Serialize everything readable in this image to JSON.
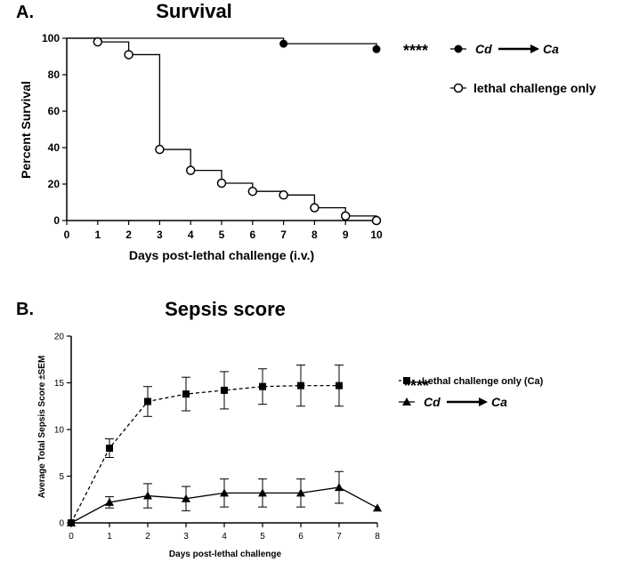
{
  "stats_marker": "****",
  "chart_data": [
    {
      "panel_label": "A.",
      "type": "line",
      "title": "Survival",
      "xlabel": "Days post-lethal challenge (i.v.)",
      "ylabel": "Percent Survival",
      "xlim": [
        0,
        10
      ],
      "ylim": [
        0,
        100
      ],
      "xticks": [
        "0",
        "1",
        "2",
        "3",
        "4",
        "5",
        "6",
        "7",
        "8",
        "9",
        "10"
      ],
      "yticks": [
        "0",
        "20",
        "40",
        "60",
        "80",
        "100"
      ],
      "step": true,
      "grid": false,
      "legend_position": "right",
      "series": [
        {
          "legend_prefix": "Cd",
          "legend_suffix": "Ca",
          "marker": "filled-circle",
          "line": "solid",
          "steps": [
            [
              0,
              100
            ],
            [
              7,
              97
            ],
            [
              10,
              94
            ]
          ],
          "points": [
            [
              7,
              97
            ],
            [
              10,
              94
            ]
          ],
          "significance": "****"
        },
        {
          "name": "lethal challenge only",
          "marker": "open-circle",
          "line": "solid",
          "steps": [
            [
              0,
              100
            ],
            [
              1,
              98
            ],
            [
              2,
              91
            ],
            [
              3,
              39
            ],
            [
              4,
              27.5
            ],
            [
              5,
              20.5
            ],
            [
              6,
              16
            ],
            [
              7,
              14
            ],
            [
              8,
              7
            ],
            [
              9,
              2.5
            ],
            [
              10,
              0
            ]
          ],
          "points": [
            [
              1,
              98
            ],
            [
              2,
              91
            ],
            [
              3,
              39
            ],
            [
              4,
              27.5
            ],
            [
              5,
              20.5
            ],
            [
              6,
              16
            ],
            [
              7,
              14
            ],
            [
              8,
              7
            ],
            [
              9,
              2.5
            ],
            [
              10,
              0
            ]
          ]
        }
      ]
    },
    {
      "panel_label": "B.",
      "type": "line",
      "title": "Sepsis score",
      "xlabel": "Days post-lethal challenge",
      "ylabel": "Average Total Sepsis Score ±SEM",
      "xlim": [
        0,
        8
      ],
      "ylim": [
        0,
        20
      ],
      "xticks": [
        "0",
        "1",
        "2",
        "3",
        "4",
        "5",
        "6",
        "7",
        "8"
      ],
      "yticks": [
        "0",
        "5",
        "10",
        "15",
        "20"
      ],
      "grid": false,
      "legend_position": "right",
      "series": [
        {
          "name": "Lethal challenge only (Ca)",
          "marker": "square",
          "line": "dashed",
          "x": [
            0,
            1,
            2,
            3,
            4,
            5,
            6,
            7
          ],
          "values": [
            0,
            8,
            13,
            13.8,
            14.2,
            14.6,
            14.7,
            14.7
          ],
          "error": [
            0,
            1,
            1.6,
            1.8,
            2,
            1.9,
            2.2,
            2.2
          ],
          "significance": "****"
        },
        {
          "legend_prefix": "Cd",
          "legend_suffix": "Ca",
          "marker": "triangle",
          "line": "solid",
          "x": [
            0,
            1,
            2,
            3,
            4,
            5,
            6,
            7,
            8
          ],
          "values": [
            0,
            2.2,
            2.9,
            2.6,
            3.2,
            3.2,
            3.2,
            3.8,
            1.6
          ],
          "error": [
            0,
            0.6,
            1.3,
            1.3,
            1.5,
            1.5,
            1.5,
            1.7,
            0
          ]
        }
      ]
    }
  ]
}
